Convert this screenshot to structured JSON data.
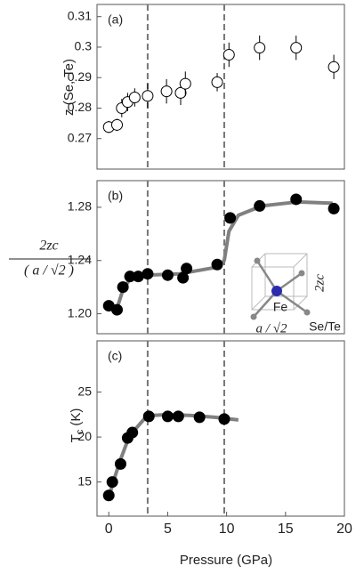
{
  "vlines": [
    3.3,
    9.8
  ],
  "chart_data": [
    {
      "type": "scatter",
      "label": "(a)",
      "ylabel": "z (Se, Te)",
      "xlim": [
        -1,
        20
      ],
      "ylim": [
        0.26,
        0.314
      ],
      "yticks": [
        0.27,
        0.28,
        0.29,
        0.3,
        0.31
      ],
      "series": [
        {
          "style": "points",
          "marker": "open",
          "color": "#000000",
          "x": [
            0,
            0.7,
            1.1,
            1.6,
            2.2,
            3.3,
            4.9,
            6.1,
            6.5,
            9.2,
            10.2,
            12.8,
            15.9,
            19.1
          ],
          "values": [
            0.2738,
            0.2745,
            0.28,
            0.282,
            0.2835,
            0.284,
            0.2855,
            0.285,
            0.288,
            0.2885,
            0.2975,
            0.2998,
            0.2998,
            0.2935
          ],
          "errors": [
            0.002,
            0.002,
            0.003,
            0.003,
            0.003,
            0.004,
            0.004,
            0.004,
            0.004,
            0.003,
            0.004,
            0.004,
            0.004,
            0.004
          ]
        }
      ]
    },
    {
      "type": "scatter",
      "label": "(b)",
      "ylabel_numerator": "2zc",
      "ylabel_denominator": "( a / √2 )",
      "xlim": [
        -1,
        20
      ],
      "ylim": [
        1.185,
        1.3
      ],
      "yticks": [
        {
          "value": 1.2,
          "label": "1.20"
        },
        1.24,
        1.28
      ],
      "inset": {
        "atom": "Fe",
        "height": "2zc",
        "anion": "Se/Te",
        "base": "a / √2"
      },
      "series": [
        {
          "style": "line",
          "color": "#808080",
          "x": [
            0,
            0.7,
            1.2,
            1.8,
            3,
            6,
            9.2,
            9.8,
            10.2,
            11,
            13,
            16,
            19
          ],
          "values": [
            1.205,
            1.204,
            1.218,
            1.226,
            1.229,
            1.23,
            1.235,
            1.24,
            1.262,
            1.274,
            1.281,
            1.284,
            1.283
          ]
        },
        {
          "style": "points",
          "marker": "filled",
          "color": "#000000",
          "x": [
            0,
            0.7,
            1.2,
            1.8,
            2.5,
            3.3,
            5,
            6.3,
            6.6,
            9.2,
            10.3,
            12.8,
            15.9,
            19.1
          ],
          "values": [
            1.206,
            1.203,
            1.22,
            1.228,
            1.228,
            1.23,
            1.229,
            1.227,
            1.234,
            1.237,
            1.272,
            1.281,
            1.286,
            1.279
          ]
        }
      ]
    },
    {
      "type": "scatter",
      "label": "(c)",
      "ylabel_main": "T",
      "ylabel_sub": "c",
      "ylabel_unit": "(K)",
      "xlabel": "Pressure (GPa)",
      "xlim": [
        -1,
        20
      ],
      "xticks": [
        0,
        5,
        10,
        15,
        20
      ],
      "ylim": [
        11.2,
        30.7
      ],
      "yticks": [
        15,
        20,
        25
      ],
      "series": [
        {
          "style": "line",
          "color": "#808080",
          "x": [
            0,
            0.5,
            1,
            1.6,
            2.2,
            3,
            3.6,
            5,
            7,
            9,
            11
          ],
          "values": [
            13.3,
            15.5,
            17.5,
            19.6,
            20.8,
            22,
            22.4,
            22.5,
            22.4,
            22.2,
            21.9
          ]
        },
        {
          "style": "points",
          "marker": "filled",
          "color": "#000000",
          "x": [
            0,
            0.3,
            1,
            1.6,
            2,
            3.4,
            5,
            5.9,
            7.7,
            9.8
          ],
          "values": [
            13.5,
            15,
            17,
            19.9,
            20.5,
            22.3,
            22.3,
            22.3,
            22.2,
            22
          ]
        }
      ]
    }
  ]
}
